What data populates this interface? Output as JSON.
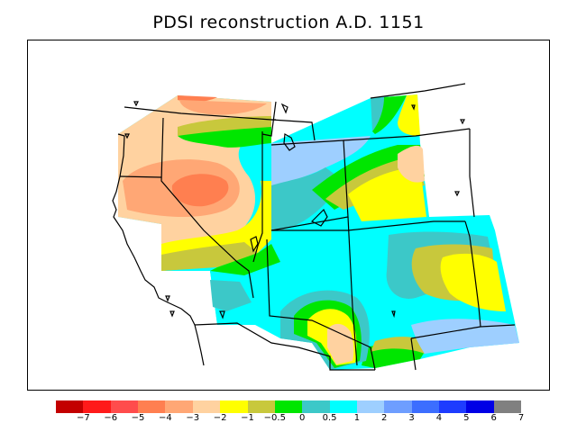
{
  "title": "PDSI reconstruction A.D. 1151",
  "legend": {
    "colors": [
      "#c30000",
      "#ff1a1a",
      "#ff4c4c",
      "#ff7f50",
      "#ffa775",
      "#ffd2a0",
      "#ffff00",
      "#c8c83c",
      "#00e600",
      "#3cc8c8",
      "#00ffff",
      "#9ecfff",
      "#6e9eff",
      "#3c6eff",
      "#1e3cff",
      "#0000e6",
      "#808080"
    ],
    "labels": [
      "−7",
      "−6",
      "−5",
      "−4",
      "−3",
      "−2",
      "−1",
      "−0.5",
      "0",
      "0.5",
      "1",
      "2",
      "3",
      "4",
      "5",
      "6",
      "7"
    ]
  },
  "palette": {
    "strong_dry": "#ff7f50",
    "dry": "#ffa775",
    "mod_dry": "#ffd2a0",
    "mild_dry": "#ffff00",
    "slight_dry": "#c8c83c",
    "near_normal": "#00e600",
    "slight_wet": "#3cc8c8",
    "wet": "#00ffff",
    "mod_wet": "#9ecfff"
  }
}
